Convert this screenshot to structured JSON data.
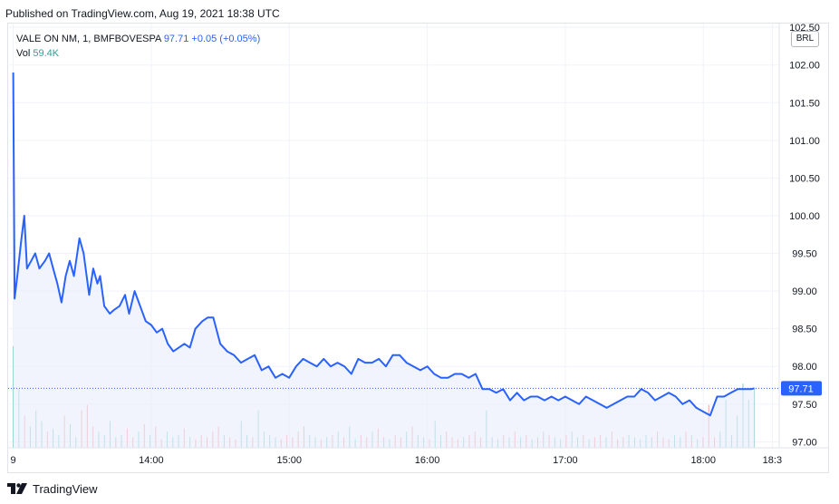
{
  "header": {
    "published_text": "Published on TradingView.com, Aug 19, 2021 18:38 UTC"
  },
  "legend": {
    "symbol": "VALE ON NM, 1, BMFBOVESPA",
    "price": "97.71",
    "change": "+0.05 (+0.05%)",
    "volume_label": "Vol",
    "volume_value": "59.4K"
  },
  "currency_button": "BRL",
  "last_price_label": "97.71",
  "footer": {
    "brand": "TradingView"
  },
  "colors": {
    "line": "#2962ff",
    "area_fill": "#e8edfb",
    "volume_up": "#26a69a",
    "volume_down": "#ef5350",
    "grid": "#f0f3fa",
    "text": "#131722"
  },
  "chart_data": {
    "type": "line",
    "title": "VALE ON NM, 1, BMFBOVESPA",
    "xlabel": "",
    "ylabel": "",
    "ylim": [
      96.92,
      102.55
    ],
    "y_ticks": [
      "97.00",
      "97.50",
      "98.00",
      "98.50",
      "99.00",
      "99.50",
      "100.00",
      "100.50",
      "101.00",
      "101.50",
      "102.00",
      "102.50"
    ],
    "x_ticks": [
      "9",
      "14:00",
      "15:00",
      "16:00",
      "17:00",
      "18:00",
      "18:3"
    ],
    "x_tick_hours": [
      13.0,
      14.0,
      15.0,
      16.0,
      17.0,
      18.0,
      18.5
    ],
    "grid": true,
    "legend_position": "top-left",
    "series": [
      {
        "time_hours": [
          13.0,
          13.01,
          13.03,
          13.06,
          13.08,
          13.1,
          13.13,
          13.16,
          13.19,
          13.23,
          13.26,
          13.29,
          13.32,
          13.35,
          13.38,
          13.41,
          13.44,
          13.48,
          13.51,
          13.55,
          13.58,
          13.61,
          13.63,
          13.66,
          13.7,
          13.73,
          13.77,
          13.81,
          13.84,
          13.88,
          13.92,
          13.96,
          14.0,
          14.04,
          14.08,
          14.12,
          14.16,
          14.2,
          14.24,
          14.28,
          14.32,
          14.37,
          14.41,
          14.45,
          14.5,
          14.55,
          14.6,
          14.65,
          14.7,
          14.75,
          14.8,
          14.85,
          14.9,
          14.95,
          15.0,
          15.05,
          15.1,
          15.15,
          15.2,
          15.25,
          15.3,
          15.35,
          15.4,
          15.45,
          15.5,
          15.55,
          15.6,
          15.65,
          15.7,
          15.75,
          15.8,
          15.85,
          15.9,
          15.95,
          16.0,
          16.05,
          16.1,
          16.15,
          16.2,
          16.25,
          16.3,
          16.35,
          16.4,
          16.45,
          16.5,
          16.55,
          16.6,
          16.65,
          16.7,
          16.75,
          16.8,
          16.85,
          16.9,
          16.95,
          17.0,
          17.05,
          17.1,
          17.15,
          17.2,
          17.25,
          17.3,
          17.35,
          17.4,
          17.45,
          17.5,
          17.55,
          17.6,
          17.65,
          17.7,
          17.75,
          17.8,
          17.85,
          17.9,
          17.95,
          18.0,
          18.05,
          18.1,
          18.15,
          18.2,
          18.25,
          18.3,
          18.35,
          18.37
        ],
        "values": [
          101.9,
          98.9,
          99.2,
          99.7,
          100.0,
          99.3,
          99.4,
          99.5,
          99.3,
          99.4,
          99.5,
          99.3,
          99.1,
          98.85,
          99.2,
          99.4,
          99.2,
          99.7,
          99.5,
          98.95,
          99.3,
          99.1,
          99.2,
          98.8,
          98.7,
          98.75,
          98.8,
          98.95,
          98.7,
          99.0,
          98.8,
          98.6,
          98.55,
          98.45,
          98.5,
          98.3,
          98.2,
          98.25,
          98.3,
          98.25,
          98.5,
          98.6,
          98.65,
          98.65,
          98.3,
          98.2,
          98.15,
          98.05,
          98.1,
          98.15,
          97.95,
          98.0,
          97.85,
          97.9,
          97.85,
          98.0,
          98.1,
          98.05,
          98.0,
          98.1,
          98.0,
          98.05,
          98.0,
          97.9,
          98.1,
          98.05,
          98.05,
          98.1,
          98.0,
          98.15,
          98.15,
          98.05,
          98.0,
          97.95,
          98.0,
          97.9,
          97.85,
          97.85,
          97.9,
          97.9,
          97.85,
          97.9,
          97.7,
          97.7,
          97.65,
          97.7,
          97.55,
          97.65,
          97.55,
          97.6,
          97.6,
          97.55,
          97.6,
          97.55,
          97.6,
          97.55,
          97.5,
          97.6,
          97.55,
          97.5,
          97.45,
          97.5,
          97.55,
          97.6,
          97.6,
          97.7,
          97.65,
          97.55,
          97.6,
          97.65,
          97.6,
          97.5,
          97.55,
          97.45,
          97.4,
          97.35,
          97.6,
          97.6,
          97.65,
          97.7,
          97.7,
          97.7,
          97.71
        ]
      }
    ],
    "volume": {
      "up_color": "#26a69a",
      "down_color": "#ef5350",
      "bars": [
        0.95,
        0.55,
        0.3,
        0.2,
        0.35,
        0.25,
        0.15,
        0.18,
        0.12,
        0.3,
        0.22,
        0.1,
        0.35,
        0.4,
        0.2,
        0.15,
        0.12,
        0.25,
        0.1,
        0.12,
        0.18,
        0.1,
        0.15,
        0.22,
        0.12,
        0.2,
        0.08,
        0.15,
        0.1,
        0.12,
        0.18,
        0.1,
        0.08,
        0.12,
        0.1,
        0.15,
        0.2,
        0.12,
        0.1,
        0.08,
        0.25,
        0.12,
        0.1,
        0.35,
        0.15,
        0.12,
        0.1,
        0.08,
        0.12,
        0.1,
        0.15,
        0.2,
        0.12,
        0.1,
        0.08,
        0.1,
        0.12,
        0.15,
        0.1,
        0.2,
        0.08,
        0.12,
        0.1,
        0.15,
        0.18,
        0.1,
        0.08,
        0.12,
        0.1,
        0.15,
        0.2,
        0.12,
        0.1,
        0.08,
        0.25,
        0.12,
        0.15,
        0.1,
        0.08,
        0.1,
        0.12,
        0.15,
        0.1,
        0.35,
        0.1,
        0.08,
        0.12,
        0.1,
        0.15,
        0.1,
        0.12,
        0.08,
        0.1,
        0.15,
        0.12,
        0.1,
        0.08,
        0.12,
        0.15,
        0.1,
        0.12,
        0.08,
        0.1,
        0.12,
        0.1,
        0.15,
        0.08,
        0.1,
        0.12,
        0.1,
        0.08,
        0.12,
        0.1,
        0.15,
        0.1,
        0.08,
        0.12,
        0.1,
        0.15,
        0.12,
        0.08,
        0.1,
        0.4,
        0.1,
        0.15,
        0.45,
        0.12,
        0.3,
        0.6,
        0.45,
        0.55
      ]
    }
  }
}
